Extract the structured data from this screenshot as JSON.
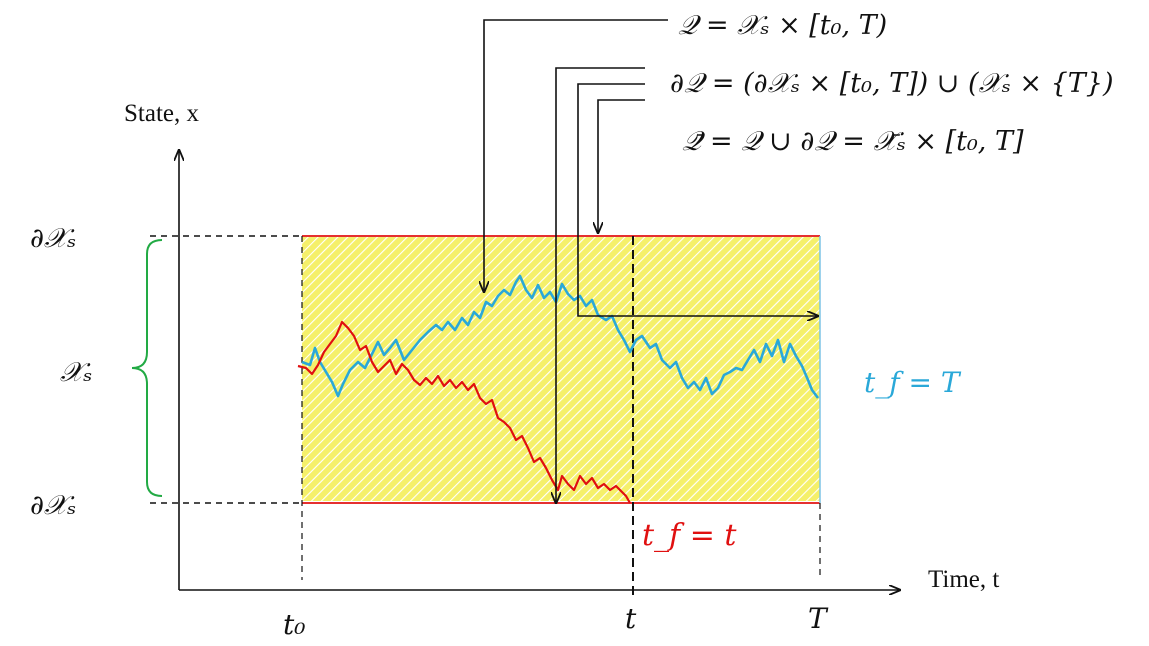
{
  "axes": {
    "y_label": "State, x",
    "x_label": "Time, t"
  },
  "ticks": {
    "t0": "t₀",
    "t": "t",
    "T": "T"
  },
  "labels": {
    "boundary_top": "∂𝒳ₛ",
    "boundary_bottom": "∂𝒳ₛ",
    "domain": "𝒳ₛ",
    "tf_T": "t_f = T",
    "tf_t": "t_f = t"
  },
  "equations": {
    "Q": "𝒬 = 𝒳ₛ × [t₀, T)",
    "dQ": "∂𝒬 = (∂𝒳ₛ × [t₀, T]) ∪ (𝒳ₛ × {T})",
    "Qbar": "𝒬̄ = 𝒬 ∪ ∂𝒬 = 𝒳̄ₛ × [t₀, T]"
  },
  "colors": {
    "region_fill": "#f5f06a",
    "hatch": "#ffffff",
    "boundary": "#e53030",
    "blue_path": "#2aa8d8",
    "red_path": "#e01010",
    "brace": "#22aa44",
    "axis": "#111111"
  }
}
